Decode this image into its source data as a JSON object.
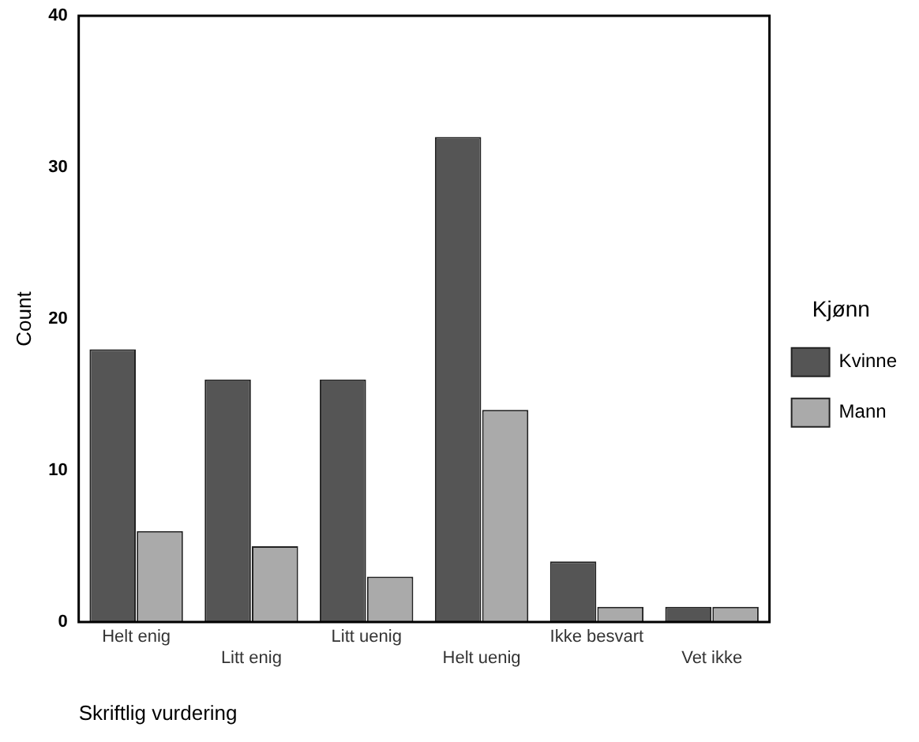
{
  "chart_data": {
    "type": "bar",
    "categories": [
      "Helt enig",
      "Litt enig",
      "Litt uenig",
      "Helt uenig",
      "Ikke besvart",
      "Vet ikke"
    ],
    "series": [
      {
        "name": "Kvinne",
        "color": "#555555",
        "values": [
          18,
          16,
          16,
          32,
          4,
          1
        ]
      },
      {
        "name": "Mann",
        "color": "#aaaaaa",
        "values": [
          6,
          5,
          3,
          14,
          1,
          1
        ]
      }
    ],
    "xlabel": "Skriftlig vurdering",
    "ylabel": "Count",
    "legend_title": "Kjønn",
    "legend": "right",
    "ylim": [
      0,
      40
    ],
    "yticks": [
      0,
      10,
      20,
      30,
      40
    ],
    "grid": false
  }
}
